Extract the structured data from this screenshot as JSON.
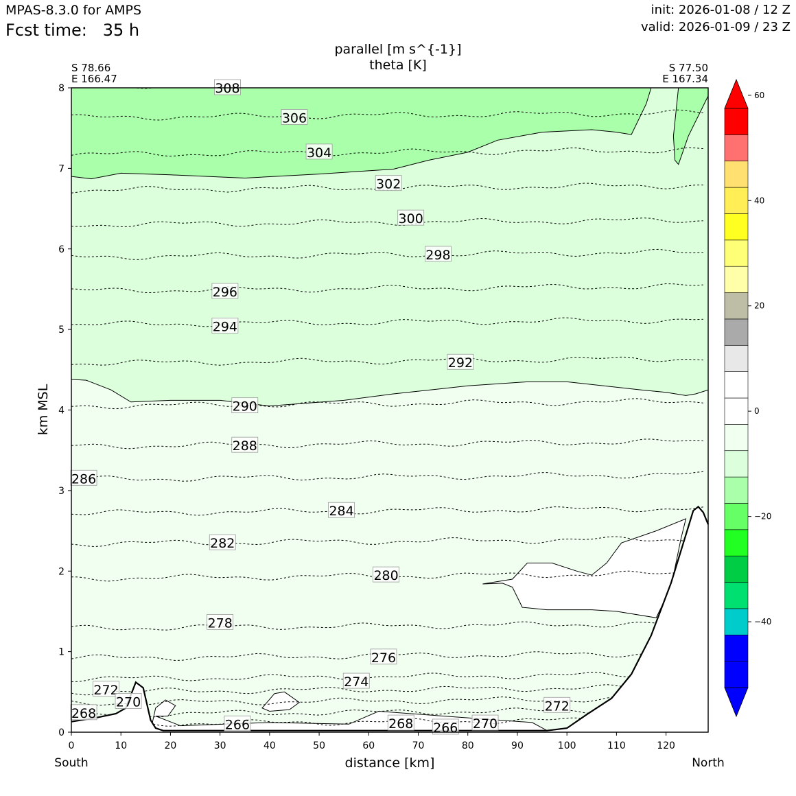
{
  "header": {
    "model": "MPAS-8.3.0 for AMPS",
    "fcst_label": "Fcst time:",
    "fcst_value": "35 h",
    "init": "init: 2026-01-08 / 12 Z",
    "valid": "valid: 2026-01-09 / 23 Z"
  },
  "chart_data": {
    "type": "contour-cross-section",
    "title": "parallel [m s^{-1}]",
    "subtitle": "theta [K]",
    "xlabel": "distance [km]",
    "ylabel": "km MSL",
    "xlim": [
      0,
      128.5
    ],
    "ylim": [
      0,
      8
    ],
    "xticks": [
      0,
      10,
      20,
      30,
      40,
      50,
      60,
      70,
      80,
      90,
      100,
      110,
      120
    ],
    "yticks": [
      0,
      1,
      2,
      3,
      4,
      5,
      6,
      7,
      8
    ],
    "start_point": {
      "lat": "S 78.66",
      "lon": "E 166.47"
    },
    "end_point": {
      "lat": "S 77.50",
      "lon": "E 167.34"
    },
    "left_direction": "South",
    "right_direction": "North",
    "colorbar": {
      "levels": [
        -50,
        -45,
        -40,
        -35,
        -30,
        -25,
        -20,
        -15,
        -10,
        -5,
        0,
        5,
        10,
        15,
        20,
        25,
        30,
        35,
        40,
        45,
        50,
        55
      ],
      "colors": [
        "#0000ff",
        "#0000ff",
        "#00cccc",
        "#00e070",
        "#00cc44",
        "#22ff22",
        "#66ff66",
        "#aaffaa",
        "#dcffdc",
        "#f0fff0",
        "#ffffff",
        "#ffffff",
        "#e8e8e8",
        "#aaaaaa",
        "#bebea6",
        "#ffffaa",
        "#ffff77",
        "#ffff22",
        "#ffee55",
        "#ffe070",
        "#ff7070",
        "#ff0000"
      ],
      "under_color": "#0000ff",
      "over_color": "#ff0000",
      "tick_values": [
        -40,
        -20,
        0,
        20,
        40,
        60
      ],
      "tick_labels": [
        "−40",
        "−20",
        "0",
        "20",
        "40",
        "60"
      ]
    },
    "theta_contours": [
      {
        "value": 266,
        "z": 0.1,
        "label": "266"
      },
      {
        "value": 268,
        "z": 0.22,
        "label": "268"
      },
      {
        "value": 270,
        "z": 0.36,
        "label": "270"
      },
      {
        "value": 272,
        "z": 0.5,
        "label": "272"
      },
      {
        "value": 274,
        "z": 0.66,
        "label": "274"
      },
      {
        "value": 276,
        "z": 0.92,
        "label": "276"
      },
      {
        "value": 278,
        "z": 1.29,
        "label": "278"
      },
      {
        "value": 280,
        "z": 1.91,
        "label": "280"
      },
      {
        "value": 282,
        "z": 2.34,
        "label": "282"
      },
      {
        "value": 284,
        "z": 2.72,
        "label": "284"
      },
      {
        "value": 286,
        "z": 3.14,
        "label": "286"
      },
      {
        "value": 288,
        "z": 3.55,
        "label": "288"
      },
      {
        "value": 290,
        "z": 4.05,
        "label": "290"
      },
      {
        "value": 292,
        "z": 4.58,
        "label": "292"
      },
      {
        "value": 294,
        "z": 5.06,
        "label": "294"
      },
      {
        "value": 296,
        "z": 5.48,
        "label": "296"
      },
      {
        "value": 298,
        "z": 5.9,
        "label": "298"
      },
      {
        "value": 300,
        "z": 6.3,
        "label": "300"
      },
      {
        "value": 302,
        "z": 6.73,
        "label": "302"
      },
      {
        "value": 304,
        "z": 7.17,
        "label": "304"
      },
      {
        "value": 306,
        "z": 7.63,
        "label": "306"
      },
      {
        "value": 308,
        "z": 8.02,
        "label": "308"
      }
    ],
    "contour_labels": [
      {
        "text": "308",
        "x": 31.5,
        "z": 8.0
      },
      {
        "text": "306",
        "x": 45.0,
        "z": 7.63
      },
      {
        "text": "304",
        "x": 50.0,
        "z": 7.2
      },
      {
        "text": "302",
        "x": 64.0,
        "z": 6.81
      },
      {
        "text": "300",
        "x": 68.5,
        "z": 6.38
      },
      {
        "text": "298",
        "x": 74.0,
        "z": 5.93
      },
      {
        "text": "296",
        "x": 31.0,
        "z": 5.47
      },
      {
        "text": "294",
        "x": 31.0,
        "z": 5.04
      },
      {
        "text": "292",
        "x": 78.5,
        "z": 4.59
      },
      {
        "text": "290",
        "x": 35.0,
        "z": 4.05
      },
      {
        "text": "288",
        "x": 35.0,
        "z": 3.56
      },
      {
        "text": "286",
        "x": 2.5,
        "z": 3.15
      },
      {
        "text": "284",
        "x": 54.5,
        "z": 2.75
      },
      {
        "text": "282",
        "x": 30.5,
        "z": 2.35
      },
      {
        "text": "280",
        "x": 63.5,
        "z": 1.95
      },
      {
        "text": "278",
        "x": 30.0,
        "z": 1.36
      },
      {
        "text": "276",
        "x": 63.0,
        "z": 0.93
      },
      {
        "text": "274",
        "x": 57.5,
        "z": 0.63
      },
      {
        "text": "272",
        "x": 7.0,
        "z": 0.53
      },
      {
        "text": "270",
        "x": 11.5,
        "z": 0.38
      },
      {
        "text": "268",
        "x": 2.5,
        "z": 0.24
      },
      {
        "text": "266",
        "x": 33.5,
        "z": 0.1
      },
      {
        "text": "268",
        "x": 66.5,
        "z": 0.11
      },
      {
        "text": "266",
        "x": 75.5,
        "z": 0.06
      },
      {
        "text": "270",
        "x": 83.5,
        "z": 0.11
      },
      {
        "text": "272",
        "x": 98.0,
        "z": 0.33
      }
    ],
    "terrain": [
      [
        0,
        0.13
      ],
      [
        5,
        0.18
      ],
      [
        9,
        0.23
      ],
      [
        11,
        0.3
      ],
      [
        13,
        0.62
      ],
      [
        14.5,
        0.55
      ],
      [
        16,
        0.15
      ],
      [
        17,
        0.05
      ],
      [
        18.5,
        0.02
      ],
      [
        20,
        0.02
      ],
      [
        60,
        0.02
      ],
      [
        96,
        0.02
      ],
      [
        100,
        0.05
      ],
      [
        104,
        0.22
      ],
      [
        109,
        0.42
      ],
      [
        113,
        0.72
      ],
      [
        117,
        1.2
      ],
      [
        121,
        1.85
      ],
      [
        124,
        2.45
      ],
      [
        125.5,
        2.75
      ],
      [
        126.5,
        2.8
      ],
      [
        127.5,
        2.73
      ],
      [
        128.5,
        2.58
      ]
    ],
    "wind_regions": [
      {
        "level": "-20 to -15 m/s",
        "color": "#aaffaa",
        "boundary": [
          [
            0,
            6.9
          ],
          [
            4,
            6.87
          ],
          [
            10,
            6.94
          ],
          [
            20,
            6.92
          ],
          [
            35,
            6.88
          ],
          [
            50,
            6.93
          ],
          [
            65,
            6.99
          ],
          [
            72,
            7.1
          ],
          [
            80,
            7.2
          ],
          [
            86,
            7.35
          ],
          [
            95,
            7.45
          ],
          [
            105,
            7.48
          ],
          [
            110,
            7.45
          ],
          [
            113,
            7.42
          ],
          [
            116,
            7.8
          ],
          [
            117,
            8
          ]
        ]
      },
      {
        "level": "-15 to -10 m/s",
        "color": "#dcffdc",
        "boundary": [
          [
            0,
            4.38
          ],
          [
            3,
            4.37
          ],
          [
            8,
            4.25
          ],
          [
            12,
            4.1
          ],
          [
            20,
            4.12
          ],
          [
            30,
            4.12
          ],
          [
            40,
            4.05
          ],
          [
            55,
            4.12
          ],
          [
            65,
            4.2
          ],
          [
            80,
            4.3
          ],
          [
            92,
            4.35
          ],
          [
            100,
            4.35
          ],
          [
            115,
            4.25
          ],
          [
            120,
            4.22
          ],
          [
            124,
            4.18
          ],
          [
            126,
            4.2
          ],
          [
            128.5,
            4.25
          ]
        ]
      }
    ]
  }
}
